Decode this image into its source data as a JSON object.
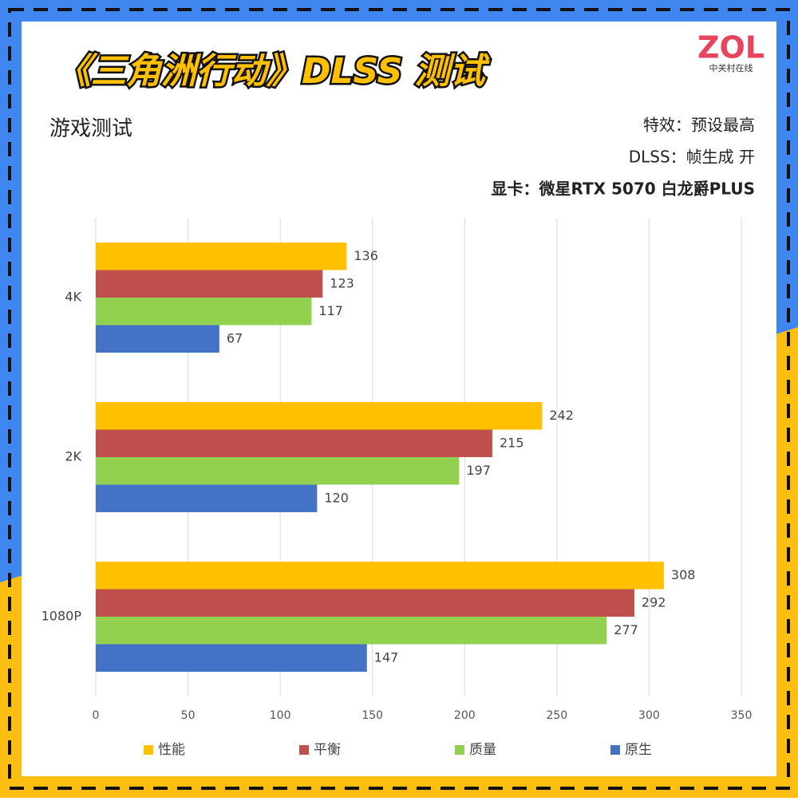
{
  "logo": {
    "brand": "ZOL",
    "name": "中关村在线"
  },
  "chart_data": {
    "type": "hbar",
    "title": "《三角洲行动》DLSS 测试",
    "subtitle": "游戏测试",
    "notes": [
      "特效：预设最高",
      "DLSS：帧生成 开",
      "显卡：微星RTX 5070 白龙爵PLUS"
    ],
    "categories": [
      "4K",
      "2K",
      "1080P"
    ],
    "series": [
      {
        "name": "性能",
        "color": "#FFC000",
        "values": [
          136,
          242,
          308
        ]
      },
      {
        "name": "平衡",
        "color": "#C0504D",
        "values": [
          123,
          215,
          292
        ]
      },
      {
        "name": "质量",
        "color": "#92D050",
        "values": [
          117,
          197,
          277
        ]
      },
      {
        "name": "原生",
        "color": "#4472C4",
        "values": [
          67,
          120,
          147
        ]
      }
    ],
    "xlim": [
      0,
      350
    ],
    "xticks": [
      0,
      50,
      100,
      150,
      200,
      250,
      300,
      350
    ],
    "grid": true,
    "legend": "bottom"
  }
}
